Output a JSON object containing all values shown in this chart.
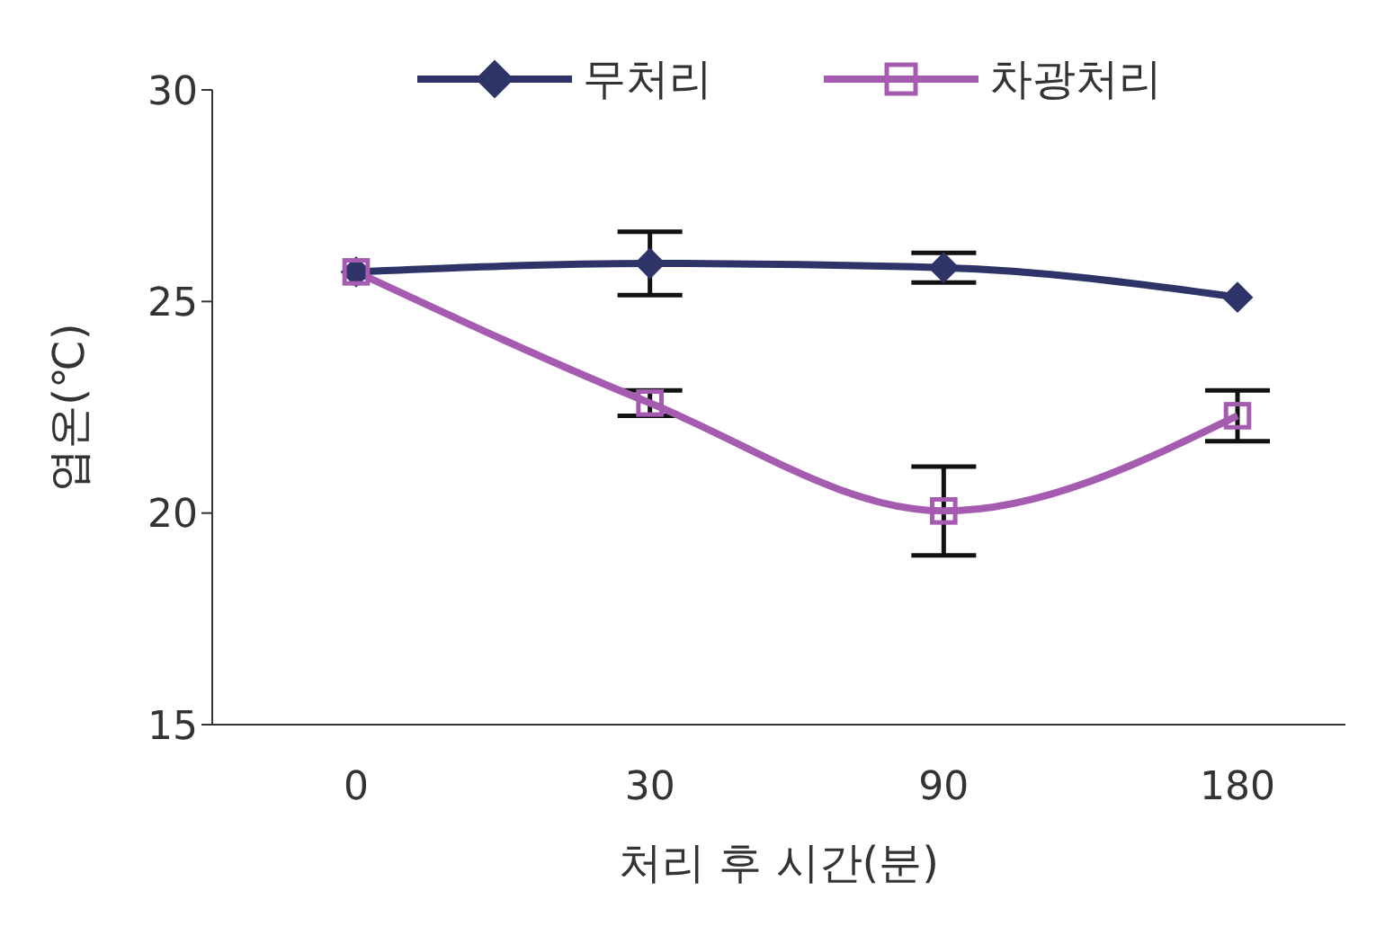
{
  "chart_data": {
    "type": "line",
    "xlabel": "처리 후 시간(분)",
    "ylabel": "엽온(℃)",
    "categories": [
      "0",
      "30",
      "90",
      "180"
    ],
    "ylim": [
      15,
      30
    ],
    "yticks": [
      15,
      20,
      25,
      30
    ],
    "grid": false,
    "legend": "top",
    "line_style": "solid",
    "series": [
      {
        "name": "무처리",
        "color": "#2e3468",
        "marker": "diamond",
        "values": [
          25.7,
          25.9,
          25.8,
          25.1
        ],
        "errors": [
          null,
          0.75,
          0.35,
          null
        ]
      },
      {
        "name": "차광처리",
        "color": "#a45bb0",
        "marker": "square",
        "values": [
          25.7,
          22.6,
          20.05,
          22.3
        ],
        "errors": [
          null,
          0.3,
          1.05,
          0.6
        ]
      }
    ]
  }
}
